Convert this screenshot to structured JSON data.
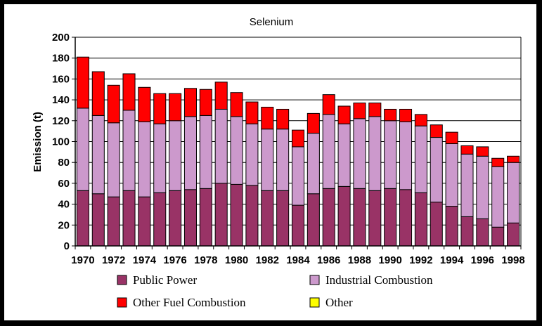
{
  "chart_data": {
    "type": "bar",
    "stacked": true,
    "title": "Selenium",
    "xlabel": "",
    "ylabel": "Emission (t)",
    "ylim": [
      0,
      200
    ],
    "yticks": [
      0,
      20,
      40,
      60,
      80,
      100,
      120,
      140,
      160,
      180,
      200
    ],
    "grid": true,
    "legend_position": "bottom",
    "categories": [
      1970,
      1971,
      1972,
      1973,
      1974,
      1975,
      1976,
      1977,
      1978,
      1979,
      1980,
      1981,
      1982,
      1983,
      1984,
      1985,
      1986,
      1987,
      1988,
      1989,
      1990,
      1991,
      1992,
      1993,
      1994,
      1995,
      1996,
      1997,
      1998
    ],
    "xtick_labels": [
      "1970",
      "1972",
      "1974",
      "1976",
      "1978",
      "1980",
      "1982",
      "1984",
      "1986",
      "1988",
      "1990",
      "1992",
      "1994",
      "1996",
      "1998"
    ],
    "series": [
      {
        "name": "Public Power",
        "color": "#993366",
        "values": [
          53,
          50,
          47,
          53,
          47,
          51,
          53,
          54,
          55,
          60,
          59,
          58,
          53,
          53,
          39,
          50,
          55,
          57,
          55,
          53,
          55,
          54,
          51,
          42,
          38,
          28,
          26,
          18,
          22
        ]
      },
      {
        "name": "Industrial Combustion",
        "color": "#cc99cc",
        "values": [
          79,
          75,
          71,
          77,
          72,
          66,
          67,
          70,
          70,
          71,
          65,
          59,
          59,
          59,
          56,
          58,
          71,
          60,
          67,
          71,
          65,
          65,
          64,
          62,
          60,
          60,
          60,
          58,
          58
        ]
      },
      {
        "name": "Other Fuel Combustion",
        "color": "#ff0000",
        "values": [
          49,
          42,
          36,
          35,
          33,
          29,
          26,
          27,
          25,
          26,
          23,
          21,
          21,
          19,
          16,
          19,
          19,
          17,
          15,
          13,
          11,
          12,
          11,
          12,
          11,
          8,
          9,
          8,
          6
        ]
      },
      {
        "name": "Other",
        "color": "#ffff00",
        "values": [
          0,
          0,
          0,
          0,
          0,
          0,
          0,
          0,
          0,
          0,
          0,
          0,
          0,
          0,
          0,
          0,
          0,
          0,
          0,
          0,
          0,
          0,
          0,
          0,
          0,
          0,
          0,
          0,
          0
        ]
      }
    ]
  }
}
